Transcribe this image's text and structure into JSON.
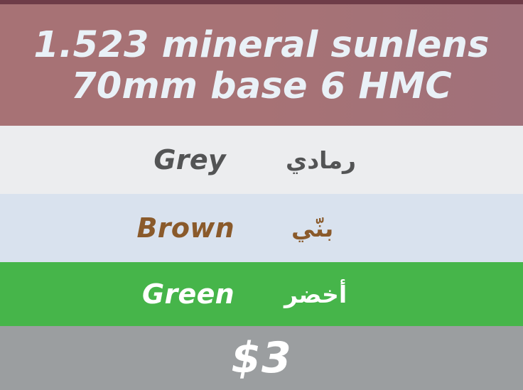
{
  "product": {
    "title_line1": "1.523 mineral sunlens",
    "title_line2": "70mm base 6 HMC"
  },
  "colors": [
    {
      "name_en": "Grey",
      "name_ar": "رمادي",
      "text_color": "#535455",
      "bg_color": "#ecedef"
    },
    {
      "name_en": "Brown",
      "name_ar": "بنّي",
      "text_color": "#8a5a2b",
      "bg_color": "#d9e2ee"
    },
    {
      "name_en": "Green",
      "name_ar": "أخضر",
      "text_color": "#ffffff",
      "bg_color": "#46b54a"
    }
  ],
  "price": "$3",
  "theme": {
    "header_bg": "#a77275",
    "header_border": "#6e3c48",
    "title_color": "#e9f1f7",
    "price_bg": "#9b9ea0"
  }
}
